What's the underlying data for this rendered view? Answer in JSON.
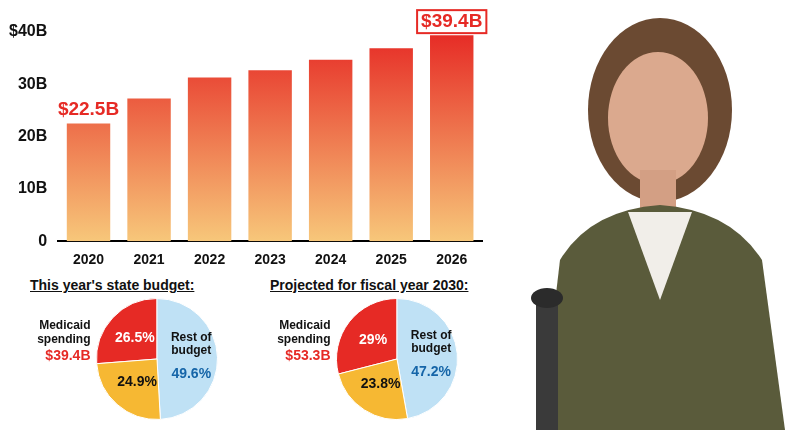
{
  "chart_data": [
    {
      "type": "bar",
      "categories": [
        "2020",
        "2021",
        "2022",
        "2023",
        "2024",
        "2025",
        "2026"
      ],
      "values": [
        22.5,
        27.3,
        31.3,
        32.7,
        34.7,
        36.9,
        39.4
      ],
      "value_labels": [
        "$22.5B",
        null,
        null,
        null,
        null,
        null,
        "$39.4B"
      ],
      "data_labels": true,
      "color": "#e62a25",
      "ylim": [
        0,
        40
      ],
      "yticks": [
        0,
        {
          "value": 10,
          "label": "10B"
        },
        {
          "value": 20,
          "label": "20B"
        },
        {
          "value": 30,
          "label": "30B"
        },
        {
          "value": 40,
          "label": "$40B"
        }
      ],
      "grid": false
    },
    {
      "type": "pie",
      "title": "This year's state budget:",
      "categories": [
        "Medicaid spending",
        "Rest of budget",
        null
      ],
      "values": [
        26.5,
        49.6,
        24.9
      ],
      "value_labels": [
        "26.5%",
        "49.6%",
        "24.9%"
      ],
      "data_labels": true,
      "colors": [
        "#e62a25",
        "#bfe1f5",
        "#f6b833"
      ],
      "annotations": [
        {
          "category": "Medicaid spending",
          "text": "$39.4B"
        }
      ]
    },
    {
      "type": "pie",
      "title": "Projected for fiscal year 2030:",
      "categories": [
        "Medicaid spending",
        "Rest of budget",
        null
      ],
      "values": [
        29,
        47.2,
        23.8
      ],
      "value_labels": [
        "29%",
        "47.2%",
        "23.8%"
      ],
      "data_labels": true,
      "colors": [
        "#e62a25",
        "#bfe1f5",
        "#f6b833"
      ],
      "annotations": [
        {
          "category": "Medicaid spending",
          "text": "$53.3B"
        }
      ]
    }
  ]
}
